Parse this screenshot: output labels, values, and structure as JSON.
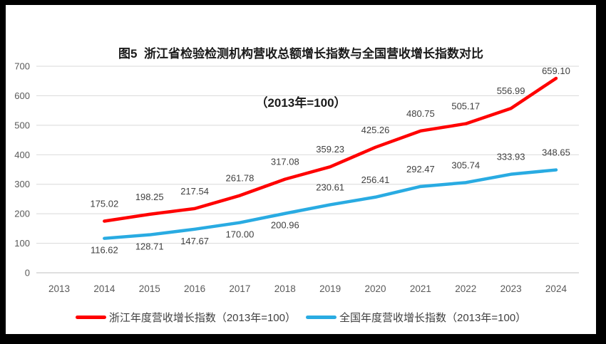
{
  "figure": {
    "title_line1": "图5  浙江省检验检测机构营收总额增长指数与全国营收增长指数对比",
    "title_line2": "（2013年=100）"
  },
  "chart_data": {
    "type": "line",
    "title": "图5 浙江省检验检测机构营收总额增长指数与全国营收增长指数对比（2013年=100）",
    "categories": [
      "2013",
      "2014",
      "2015",
      "2016",
      "2017",
      "2018",
      "2019",
      "2020",
      "2021",
      "2022",
      "2023",
      "2024"
    ],
    "y_ticks": [
      0,
      100,
      200,
      300,
      400,
      500,
      600,
      700
    ],
    "ylim": [
      0,
      700
    ],
    "grid": true,
    "legend_position": "bottom",
    "series": [
      {
        "name": "浙江年度营收增长指数（2013年=100）",
        "color": "#ff0000",
        "values": [
          null,
          175.02,
          198.25,
          217.54,
          261.78,
          317.08,
          359.23,
          425.26,
          480.75,
          505.17,
          556.99,
          659.1
        ],
        "label_below_indices": [],
        "label_dy": {
          "11": -6
        }
      },
      {
        "name": "全国年度营收增长指数（2013年=100）",
        "color": "#29abe2",
        "values": [
          null,
          116.62,
          128.71,
          147.67,
          170.0,
          200.96,
          230.61,
          256.41,
          292.47,
          305.74,
          333.93,
          348.65
        ],
        "label_below_indices": [
          1,
          2,
          3,
          4,
          5
        ],
        "label_dy": {}
      }
    ],
    "colors": {
      "grid": "#d9d9d9",
      "baseline": "#bfbfbf",
      "axis_text": "#595959",
      "data_label": "#404040",
      "title_text": "#1a1a1a"
    }
  }
}
